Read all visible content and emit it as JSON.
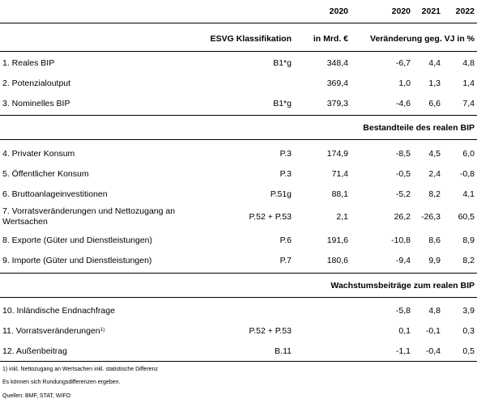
{
  "header": {
    "year_top_val": "2020",
    "years": [
      "2020",
      "2021",
      "2022"
    ],
    "classification_label": "ESVG Klassifikation",
    "unit_label": "in Mrd. €",
    "change_label": "Veränderung geg. VJ in %"
  },
  "rows_top": [
    {
      "label": "1. Reales BIP",
      "cls": "B1*g",
      "val": "348,4",
      "y2020": "-6,7",
      "y2021": "4,4",
      "y2022": "4,8"
    },
    {
      "label": "2. Potenzialoutput",
      "cls": "",
      "val": "369,4",
      "y2020": "1,0",
      "y2021": "1,3",
      "y2022": "1,4"
    },
    {
      "label": "3. Nominelles BIP",
      "cls": "B1*g",
      "val": "379,3",
      "y2020": "-4,6",
      "y2021": "6,6",
      "y2022": "7,4"
    }
  ],
  "section_components": "Bestandteile des realen BIP",
  "rows_components": [
    {
      "label": "4. Privater Konsum",
      "cls": "P.3",
      "val": "174,9",
      "y2020": "-8,5",
      "y2021": "4,5",
      "y2022": "6,0"
    },
    {
      "label": "5. Öffentlicher Konsum",
      "cls": "P.3",
      "val": "71,4",
      "y2020": "-0,5",
      "y2021": "2,4",
      "y2022": "-0,8"
    },
    {
      "label": "6. Bruttoanlageinvestitionen",
      "cls": "P.51g",
      "val": "88,1",
      "y2020": "-5,2",
      "y2021": "8,2",
      "y2022": "4,1"
    },
    {
      "label": "7. Vorratsveränderungen und Nettozugang an",
      "label2": "Wertsachen",
      "cls": "P.52 + P.53",
      "val": "2,1",
      "y2020": "26,2",
      "y2021": "-26,3",
      "y2022": "60,5"
    },
    {
      "label": "8. Exporte (Güter und Dienstleistungen)",
      "cls": "P.6",
      "val": "191,6",
      "y2020": "-10,8",
      "y2021": "8,6",
      "y2022": "8,9"
    },
    {
      "label": "9. Importe (Güter und Dienstleistungen)",
      "cls": "P.7",
      "val": "180,6",
      "y2020": "-9,4",
      "y2021": "9,9",
      "y2022": "8,2"
    }
  ],
  "section_growth": "Wachstumsbeiträge zum realen BIP",
  "rows_growth": [
    {
      "label": "10. Inländische Endnachfrage",
      "cls": "",
      "val": "",
      "y2020": "-5,8",
      "y2021": "4,8",
      "y2022": "3,9"
    },
    {
      "label": "11. Vorratsveränderungen",
      "sup": "1)",
      "cls": "P.52 + P.53",
      "val": "",
      "y2020": "0,1",
      "y2021": "-0,1",
      "y2022": "0,3"
    },
    {
      "label": "12. Außenbeitrag",
      "cls": "B.11",
      "val": "",
      "y2020": "-1,1",
      "y2021": "-0,4",
      "y2022": "0,5"
    }
  ],
  "notes": [
    "1) inkl. Nettozugang an Wertsachen inkl. statistische Differenz",
    "Es können sich Rundungsdifferenzen ergeben.",
    "Quellen: BMF, STAT, WIFO"
  ]
}
